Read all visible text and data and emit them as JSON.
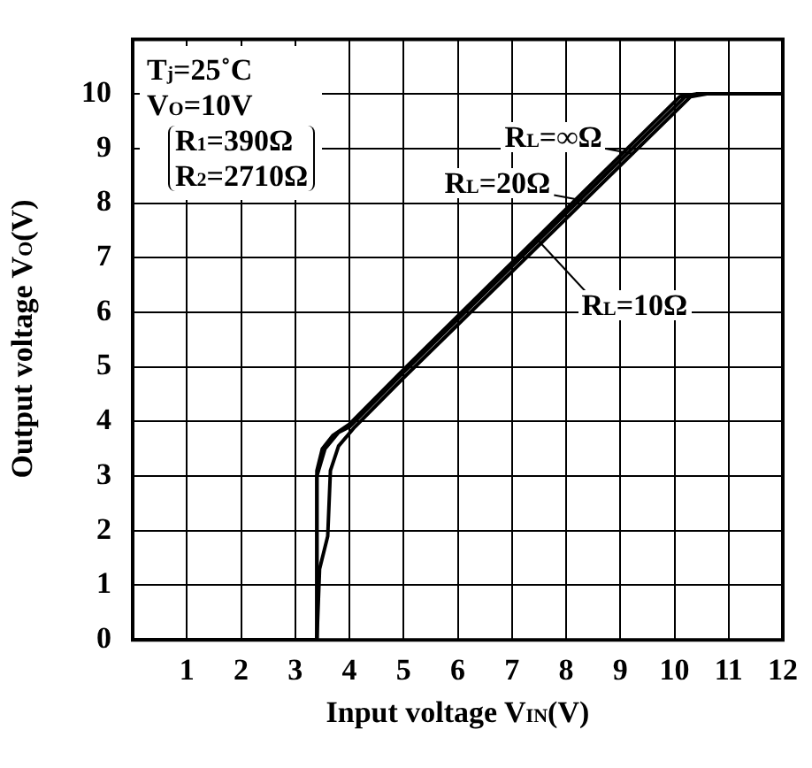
{
  "chart_data": {
    "type": "line",
    "xlabel": "Input voltage V$_{IN}$(V)",
    "ylabel": "Output voltage V$_{O}$(V)",
    "xlim": [
      0,
      12
    ],
    "xticks": [
      1,
      2,
      3,
      4,
      5,
      6,
      7,
      8,
      9,
      10,
      11,
      12
    ],
    "ylim": [
      0,
      11
    ],
    "yticks": [
      0,
      1,
      2,
      3,
      4,
      5,
      6,
      7,
      8,
      9,
      10
    ],
    "grid": true,
    "legend": false,
    "marker": "none",
    "line_style": "solid",
    "series": [
      {
        "color": "#000000",
        "x": [
          0,
          3.4,
          3.4,
          3.5,
          3.7,
          4,
          5,
          10.1,
          10.4,
          12
        ],
        "values": [
          0,
          0,
          3.1,
          3.5,
          3.75,
          3.95,
          4.95,
          9.95,
          10,
          10
        ]
      },
      {
        "color": "#000000",
        "x": [
          0,
          3.4,
          3.4,
          3.55,
          3.8,
          4,
          5,
          10.2,
          10.5,
          12
        ],
        "values": [
          0,
          0,
          3,
          3.5,
          3.8,
          3.9,
          4.9,
          9.95,
          10,
          10
        ]
      },
      {
        "color": "#000000",
        "x": [
          0,
          3.4,
          3.45,
          3.6,
          3.65,
          3.8,
          4.1,
          5,
          10.3,
          10.6,
          12
        ],
        "values": [
          0,
          0,
          1.3,
          1.9,
          3.1,
          3.55,
          3.9,
          4.8,
          9.95,
          10,
          10
        ]
      }
    ],
    "annotations": [
      "T$_{j}$=25˚C",
      "V$_{O}$=10V",
      "R$_{1}$=390Ω",
      "R$_{2}$=2710Ω",
      {
        "text": "R$_{L}$=∞Ω",
        "x": 9.25,
        "y": 8.9
      },
      {
        "text": "R$_{L}$=20Ω",
        "x": 8.3,
        "y": 8.05
      },
      {
        "text": "R$_{L}$=10Ω",
        "x": 7.5,
        "y": 7.3
      }
    ]
  }
}
